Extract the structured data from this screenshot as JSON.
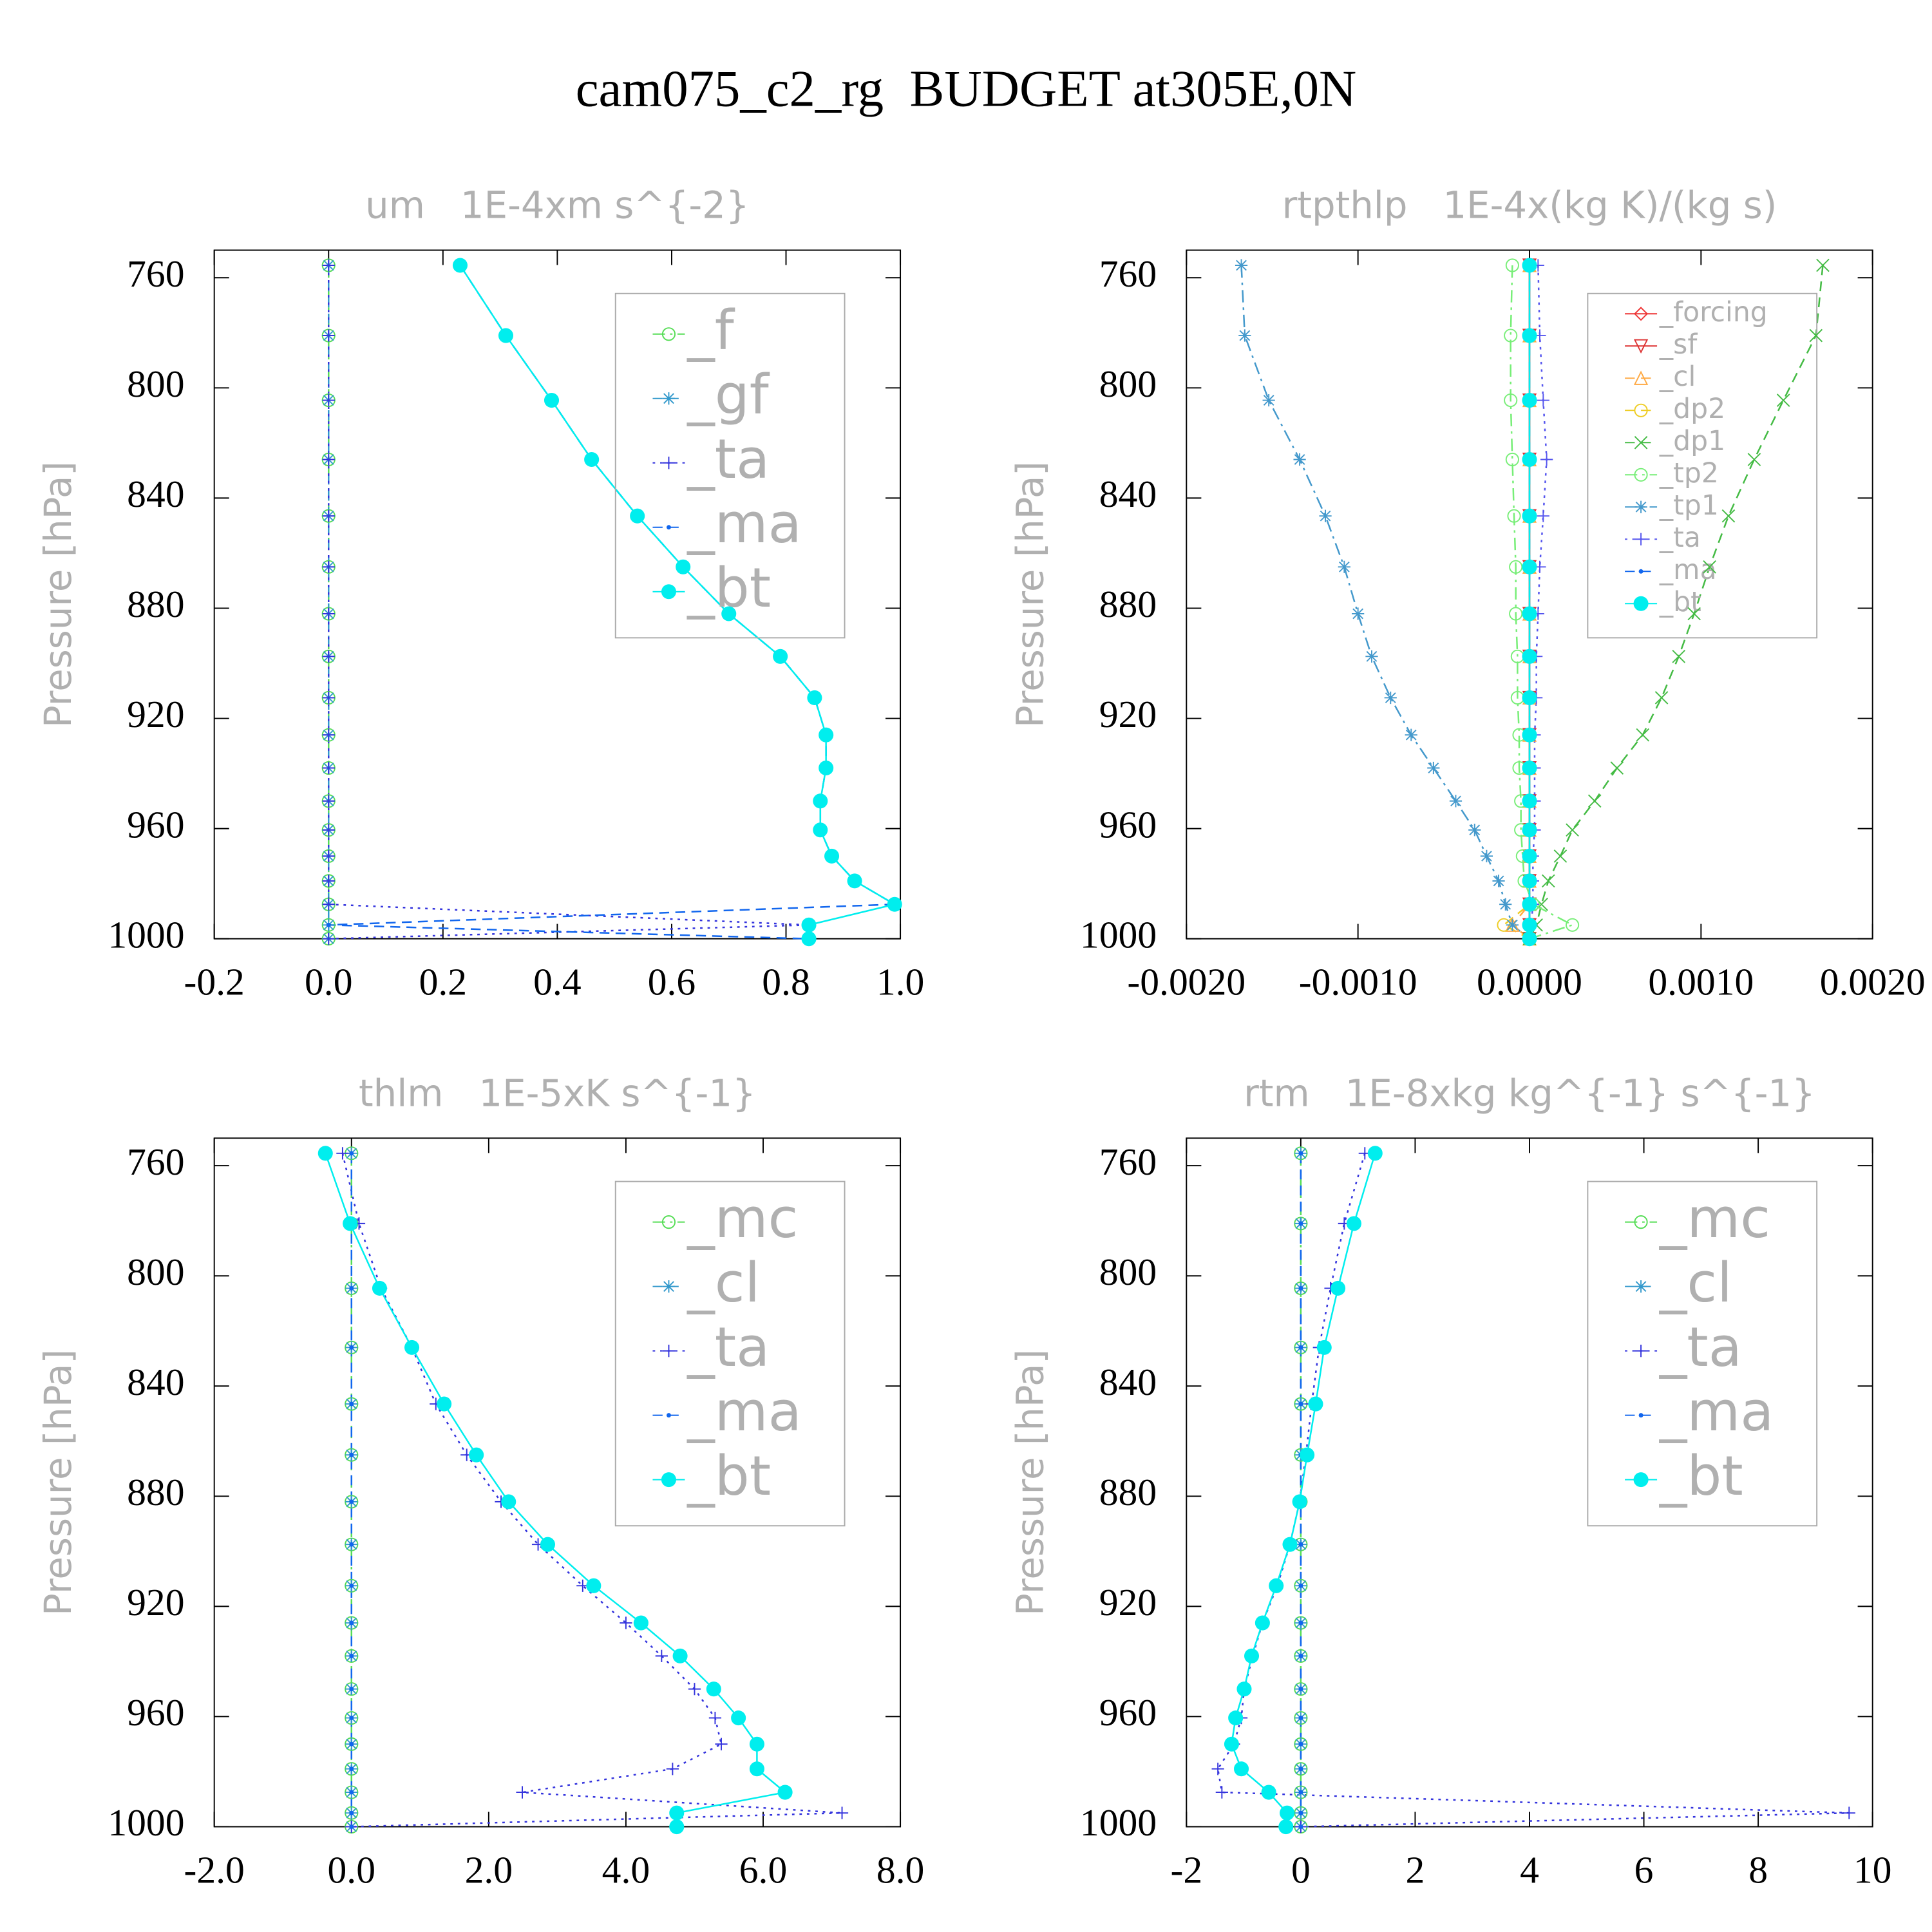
{
  "title": "cam075_c2_rg  BUDGET at305E,0N",
  "chart_data": [
    {
      "type": "line",
      "title": "um   1E-4xm s^{-2}",
      "ylabel": "Pressure [hPa]",
      "y": [
        755.5,
        781,
        804.5,
        826,
        846.5,
        865,
        882,
        897.5,
        912.5,
        926,
        938,
        950,
        960.5,
        970,
        979,
        987.5,
        995,
        1000
      ],
      "ylim": [
        1000,
        750
      ],
      "yticks": [
        760,
        800,
        840,
        880,
        920,
        960,
        1000
      ],
      "xlim": [
        -0.2,
        1.0
      ],
      "xticks": [
        -0.2,
        {
          "value": 0,
          "label": "0.0"
        },
        0.2,
        0.4,
        0.6,
        0.8,
        {
          "value": 1.0,
          "label": "1.0"
        }
      ],
      "legend": "upper right",
      "series": [
        {
          "name": "_f",
          "color": "#55dd55",
          "marker": "circle",
          "dash": "dashdot",
          "values": [
            0,
            0,
            0,
            0,
            0,
            0,
            0,
            0,
            0,
            0,
            0,
            0,
            0,
            0,
            0,
            0,
            0,
            0
          ]
        },
        {
          "name": "_gf",
          "color": "#3399cc",
          "marker": "asterisk",
          "dash": "dashed",
          "values": [
            0,
            0,
            0,
            0,
            0,
            0,
            0,
            0,
            0,
            0,
            0,
            0,
            0,
            0,
            0,
            0,
            0,
            0
          ]
        },
        {
          "name": "_ta",
          "color": "#3333dd",
          "marker": "plus",
          "dash": "dotted",
          "values": [
            0,
            0,
            0,
            0,
            0,
            0,
            0,
            0,
            0,
            0,
            0,
            0,
            0,
            0,
            0,
            0,
            0.84,
            0
          ]
        },
        {
          "name": "_ma",
          "color": "#1166ee",
          "marker": "dot",
          "dash": "dashed",
          "values": [
            0.23,
            0.31,
            0.39,
            0.46,
            0.54,
            0.62,
            0.7,
            0.79,
            0.85,
            0.87,
            0.87,
            0.86,
            0.86,
            0.88,
            0.92,
            0.99,
            0,
            0.84
          ]
        },
        {
          "name": "_bt",
          "color": "#00eeee",
          "marker": "filledcircle",
          "dash": "solid",
          "values": [
            0.23,
            0.31,
            0.39,
            0.46,
            0.54,
            0.62,
            0.7,
            0.79,
            0.85,
            0.87,
            0.87,
            0.86,
            0.86,
            0.88,
            0.92,
            0.99,
            0.84,
            0.84
          ]
        }
      ]
    },
    {
      "type": "line",
      "title": "rtpthlp   1E-4x(kg K)/(kg s)",
      "ylabel": "Pressure [hPa]",
      "y": [
        755.5,
        781,
        804.5,
        826,
        846.5,
        865,
        882,
        897.5,
        912.5,
        926,
        938,
        950,
        960.5,
        970,
        979,
        987.5,
        995,
        1000
      ],
      "ylim": [
        1000,
        750
      ],
      "yticks": [
        760,
        800,
        840,
        880,
        920,
        960,
        1000
      ],
      "xlim": [
        -0.002,
        0.002
      ],
      "xticks": [
        {
          "value": -0.002,
          "label": "-0.0020"
        },
        {
          "value": -0.001,
          "label": "-0.0010"
        },
        {
          "value": 0,
          "label": "0.0000"
        },
        {
          "value": 0.001,
          "label": "0.0010"
        },
        {
          "value": 0.002,
          "label": "0.0020"
        }
      ],
      "legend": "upper right",
      "series": [
        {
          "name": "_forcing",
          "color": "#ee3333",
          "marker": "diamond",
          "dash": "solid",
          "values": [
            0,
            0,
            0,
            0,
            0,
            0,
            0,
            0,
            0,
            0,
            0,
            0,
            0,
            0,
            0,
            0,
            0,
            0
          ]
        },
        {
          "name": "_sf",
          "color": "#dd3333",
          "marker": "triangledown",
          "dash": "solid",
          "values": [
            0,
            0,
            0,
            0,
            0,
            0,
            0,
            0,
            0,
            0,
            0,
            0,
            0,
            0,
            0,
            0,
            0,
            0
          ]
        },
        {
          "name": "_cl",
          "color": "#ffaa44",
          "marker": "triangle",
          "dash": "dashed",
          "values": [
            0,
            0,
            0,
            0,
            0,
            0,
            0,
            0,
            0,
            0,
            0,
            0,
            0,
            0,
            0,
            0,
            -0.0001,
            0
          ]
        },
        {
          "name": "_dp2",
          "color": "#eecc22",
          "marker": "circle",
          "dash": "dashed",
          "values": [
            0,
            0,
            0,
            0,
            0,
            0,
            0,
            0,
            0,
            0,
            0,
            0,
            0,
            0,
            0,
            0,
            -0.00015,
            0
          ]
        },
        {
          "name": "_dp1",
          "color": "#44bb44",
          "marker": "x",
          "dash": "dashed",
          "values": [
            0.00171,
            0.00167,
            0.00148,
            0.00131,
            0.00116,
            0.00105,
            0.00096,
            0.00087,
            0.00077,
            0.00066,
            0.00051,
            0.00038,
            0.00025,
            0.00018,
            0.00011,
            7e-05,
            4e-05,
            0
          ]
        },
        {
          "name": "_tp2",
          "color": "#77ee77",
          "marker": "circle",
          "dash": "dashdot",
          "values": [
            -0.0001,
            -0.00011,
            -0.00011,
            -0.0001,
            -9e-05,
            -8e-05,
            -8e-05,
            -7e-05,
            -7e-05,
            -6e-05,
            -6e-05,
            -5e-05,
            -5e-05,
            -4e-05,
            -3e-05,
            2e-05,
            0.00025,
            0
          ]
        },
        {
          "name": "_tp1",
          "color": "#4499cc",
          "marker": "asterisk",
          "dash": "dashdot",
          "values": [
            -0.00168,
            -0.00166,
            -0.00152,
            -0.00134,
            -0.00119,
            -0.00108,
            -0.001,
            -0.00092,
            -0.00081,
            -0.00069,
            -0.00056,
            -0.00043,
            -0.00032,
            -0.00025,
            -0.00018,
            -0.00014,
            -0.0001,
            0
          ]
        },
        {
          "name": "_ta",
          "color": "#5555ee",
          "marker": "plus",
          "dash": "dotted",
          "values": [
            5e-05,
            6e-05,
            8e-05,
            0.0001,
            8e-05,
            6e-05,
            5e-05,
            4e-05,
            4e-05,
            3e-05,
            3e-05,
            3e-05,
            3e-05,
            2e-05,
            2e-05,
            2e-05,
            1e-05,
            0
          ]
        },
        {
          "name": "_ma",
          "color": "#1166ee",
          "marker": "dot",
          "dash": "dashed",
          "values": [
            0,
            0,
            0,
            0,
            0,
            0,
            0,
            0,
            0,
            0,
            0,
            0,
            0,
            0,
            0,
            0,
            0,
            0
          ]
        },
        {
          "name": "_bt",
          "color": "#00eeee",
          "marker": "filledcircle",
          "dash": "solid",
          "values": [
            0,
            0,
            0,
            0,
            0,
            0,
            0,
            0,
            0,
            0,
            0,
            0,
            0,
            0,
            0,
            0,
            0,
            0
          ]
        }
      ]
    },
    {
      "type": "line",
      "title": "thlm   1E-5xK s^{-1}",
      "ylabel": "Pressure [hPa]",
      "y": [
        755.5,
        781,
        804.5,
        826,
        846.5,
        865,
        882,
        897.5,
        912.5,
        926,
        938,
        950,
        960.5,
        970,
        979,
        987.5,
        995,
        1000
      ],
      "ylim": [
        1000,
        750
      ],
      "yticks": [
        760,
        800,
        840,
        880,
        920,
        960,
        1000
      ],
      "xlim": [
        -2,
        8
      ],
      "xticks": [
        {
          "value": -2,
          "label": "-2.0"
        },
        {
          "value": 0,
          "label": "0.0"
        },
        {
          "value": 2,
          "label": "2.0"
        },
        {
          "value": 4,
          "label": "4.0"
        },
        {
          "value": 6,
          "label": "6.0"
        },
        {
          "value": 8,
          "label": "8.0"
        }
      ],
      "legend": "upper right",
      "series": [
        {
          "name": "_mc",
          "color": "#55dd55",
          "marker": "circle",
          "dash": "dashdot",
          "values": [
            0,
            0,
            0,
            0,
            0,
            0,
            0,
            0,
            0,
            0,
            0,
            0,
            0,
            0,
            0,
            0,
            0,
            0
          ]
        },
        {
          "name": "_cl",
          "color": "#3399cc",
          "marker": "asterisk",
          "dash": "dashed",
          "values": [
            0,
            0,
            0,
            0,
            0,
            0,
            0,
            0,
            0,
            0,
            0,
            0,
            0,
            0,
            0,
            0,
            0,
            0
          ]
        },
        {
          "name": "_ta",
          "color": "#3333dd",
          "marker": "plus",
          "dash": "dotted",
          "values": [
            -0.13,
            0.11,
            0.43,
            0.88,
            1.23,
            1.68,
            2.18,
            2.72,
            3.37,
            4.0,
            4.52,
            5.0,
            5.3,
            5.39,
            4.68,
            2.49,
            7.15,
            0
          ]
        },
        {
          "name": "_ma",
          "color": "#1166ee",
          "marker": "dot",
          "dash": "dashed",
          "values": [
            0,
            0,
            0,
            0,
            0,
            0,
            0,
            0,
            0,
            0,
            0,
            0,
            0,
            0,
            0,
            0,
            0,
            0
          ]
        },
        {
          "name": "_bt",
          "color": "#00eeee",
          "marker": "filledcircle",
          "dash": "solid",
          "values": [
            -0.38,
            -0.02,
            0.41,
            0.88,
            1.35,
            1.82,
            2.29,
            2.86,
            3.53,
            4.22,
            4.79,
            5.28,
            5.64,
            5.91,
            5.91,
            6.32,
            4.74,
            4.74
          ]
        }
      ]
    },
    {
      "type": "line",
      "title": "rtm   1E-8xkg kg^{-1} s^{-1}",
      "ylabel": "Pressure [hPa]",
      "y": [
        755.5,
        781,
        804.5,
        826,
        846.5,
        865,
        882,
        897.5,
        912.5,
        926,
        938,
        950,
        960.5,
        970,
        979,
        987.5,
        995,
        1000
      ],
      "ylim": [
        1000,
        750
      ],
      "yticks": [
        760,
        800,
        840,
        880,
        920,
        960,
        1000
      ],
      "xlim": [
        -2,
        10
      ],
      "xticks": [
        -2,
        0,
        2,
        4,
        6,
        8,
        10
      ],
      "legend": "upper right",
      "series": [
        {
          "name": "_mc",
          "color": "#55dd55",
          "marker": "circle",
          "dash": "dashdot",
          "values": [
            0,
            0,
            0,
            0,
            0,
            0,
            0,
            0,
            0,
            0,
            0,
            0,
            0,
            0,
            0,
            0,
            0,
            0
          ]
        },
        {
          "name": "_cl",
          "color": "#3399cc",
          "marker": "asterisk",
          "dash": "dashed",
          "values": [
            0,
            0,
            0,
            0,
            0,
            0,
            0,
            0,
            0,
            0,
            0,
            0,
            0,
            0,
            0,
            0,
            0,
            0
          ]
        },
        {
          "name": "_ta",
          "color": "#3333dd",
          "marker": "plus",
          "dash": "dotted",
          "values": [
            1.12,
            0.76,
            0.52,
            0.32,
            0.19,
            0.09,
            -0.02,
            -0.19,
            -0.41,
            -0.67,
            -0.84,
            -0.99,
            -1.04,
            -1.17,
            -1.45,
            -1.38,
            9.59,
            0
          ]
        },
        {
          "name": "_ma",
          "color": "#1166ee",
          "marker": "dot",
          "dash": "dashed",
          "values": [
            0,
            0,
            0,
            0,
            0,
            0,
            0,
            0,
            0,
            0,
            0,
            0,
            0,
            0,
            0,
            0,
            0,
            0
          ]
        },
        {
          "name": "_bt",
          "color": "#00eeee",
          "marker": "filledcircle",
          "dash": "solid",
          "values": [
            1.3,
            0.93,
            0.65,
            0.41,
            0.26,
            0.11,
            -0.02,
            -0.19,
            -0.43,
            -0.67,
            -0.86,
            -0.99,
            -1.14,
            -1.21,
            -1.04,
            -0.56,
            -0.24,
            -0.26
          ]
        }
      ]
    }
  ]
}
